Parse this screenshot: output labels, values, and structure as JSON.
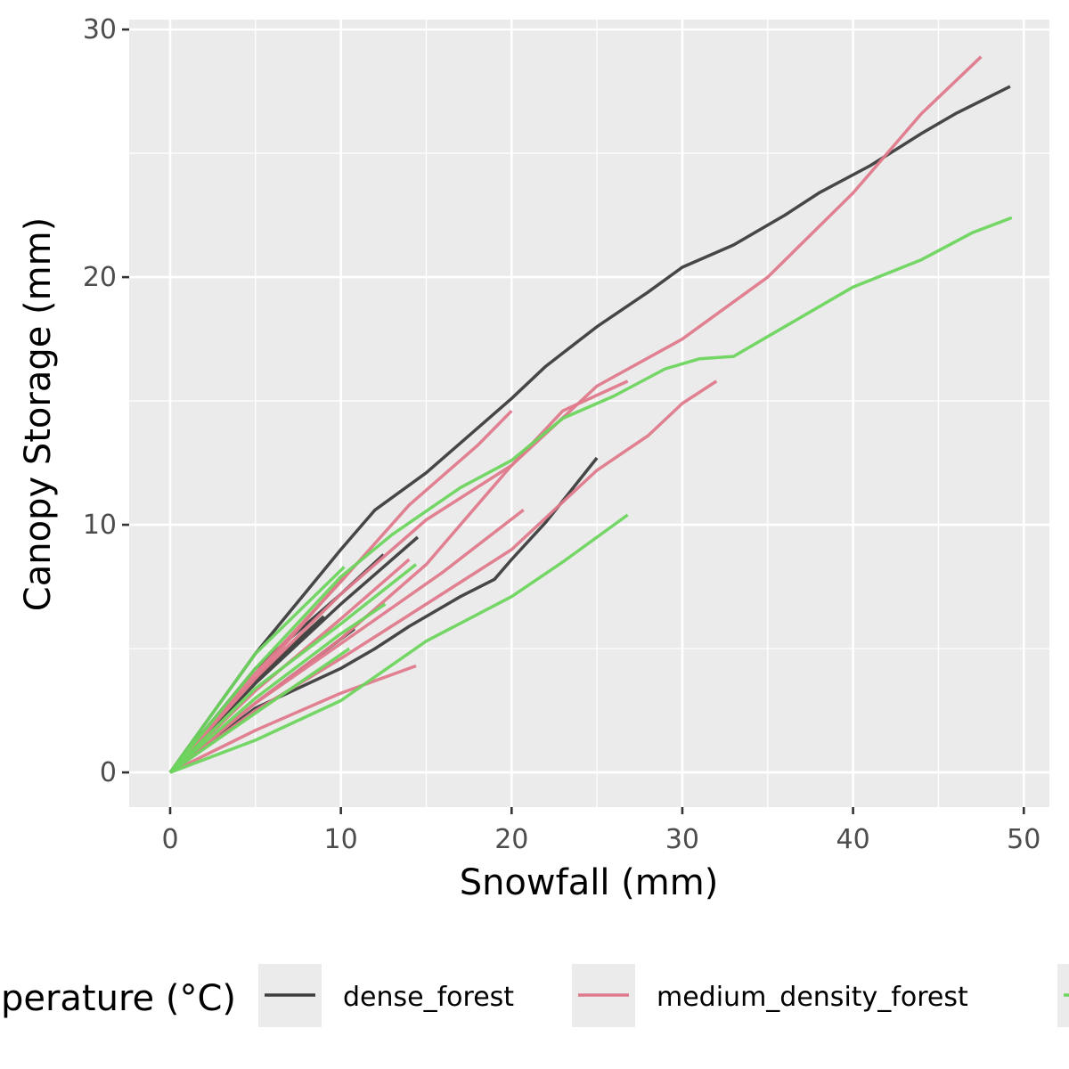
{
  "chart_data": {
    "type": "line",
    "title": "",
    "xlabel": "Snowfall (mm)",
    "ylabel": "Canopy Storage (mm)",
    "xlim": [
      -2.4,
      51.5
    ],
    "ylim": [
      -1.4,
      30.4
    ],
    "x_ticks": [
      0,
      10,
      20,
      30,
      40,
      50
    ],
    "y_ticks": [
      0,
      10,
      20,
      30
    ],
    "x_tick_labels": [
      "0",
      "10",
      "20",
      "30",
      "40",
      "50"
    ],
    "y_tick_labels": [
      "0",
      "10",
      "20",
      "30"
    ],
    "grid": true,
    "background": "#ebebeb",
    "legend": {
      "position": "bottom",
      "title": "Temperature (°C)",
      "entries": [
        {
          "label": "dense_forest",
          "color": "#3d3d3d"
        },
        {
          "label": "medium_density_forest",
          "color": "#df7a8c"
        },
        {
          "label": "",
          "color": "#6dd55e"
        }
      ]
    },
    "series": [
      {
        "name": "dense_forest",
        "color": "#3d3d3d",
        "x": [
          0,
          5,
          10,
          12,
          15,
          20,
          22,
          25,
          28,
          30,
          33,
          36,
          38,
          41,
          44,
          46,
          49.2
        ],
        "y": [
          0,
          4.8,
          9.0,
          10.6,
          12.1,
          15.1,
          16.4,
          18.0,
          19.4,
          20.4,
          21.3,
          22.5,
          23.4,
          24.5,
          25.8,
          26.6,
          27.7
        ]
      },
      {
        "name": "dense_forest",
        "color": "#3d3d3d",
        "x": [
          0,
          5,
          10,
          12,
          14,
          17,
          19,
          20,
          22,
          25
        ],
        "y": [
          0,
          2.6,
          4.2,
          5.0,
          5.9,
          7.1,
          7.8,
          8.6,
          10.1,
          12.7
        ]
      },
      {
        "name": "dense_forest",
        "color": "#3d3d3d",
        "x": [
          0,
          5,
          10,
          12.5
        ],
        "y": [
          0,
          4.2,
          7.2,
          8.8
        ]
      },
      {
        "name": "dense_forest",
        "color": "#3d3d3d",
        "x": [
          0,
          5,
          10,
          14.5
        ],
        "y": [
          0,
          3.6,
          6.8,
          9.5
        ]
      },
      {
        "name": "dense_forest",
        "color": "#3d3d3d",
        "x": [
          0,
          5,
          10.8
        ],
        "y": [
          0,
          2.8,
          5.8
        ]
      },
      {
        "name": "dense_forest",
        "color": "#3d3d3d",
        "x": [
          0,
          4,
          9
        ],
        "y": [
          0,
          3.1,
          6.3
        ]
      },
      {
        "name": "medium_density_forest",
        "color": "#df7a8c",
        "x": [
          0,
          5,
          10,
          15,
          20,
          25,
          30,
          35,
          40,
          44,
          47.5
        ],
        "y": [
          0,
          3.8,
          7.2,
          10.2,
          12.4,
          15.6,
          17.5,
          20.0,
          23.4,
          26.6,
          28.9
        ]
      },
      {
        "name": "medium_density_forest",
        "color": "#df7a8c",
        "x": [
          0,
          5,
          10,
          14,
          18,
          20
        ],
        "y": [
          0,
          4.0,
          7.7,
          10.8,
          13.2,
          14.6
        ]
      },
      {
        "name": "medium_density_forest",
        "color": "#df7a8c",
        "x": [
          0,
          5,
          10,
          15,
          20,
          23,
          26.8
        ],
        "y": [
          0,
          2.8,
          5.4,
          8.4,
          12.4,
          14.6,
          15.8
        ]
      },
      {
        "name": "medium_density_forest",
        "color": "#df7a8c",
        "x": [
          0,
          5,
          10,
          15,
          20,
          25,
          28,
          30,
          32
        ],
        "y": [
          0,
          2.5,
          4.6,
          6.8,
          9.0,
          12.2,
          13.6,
          14.9,
          15.8
        ]
      },
      {
        "name": "medium_density_forest",
        "color": "#df7a8c",
        "x": [
          0,
          5,
          10,
          16,
          20.7
        ],
        "y": [
          0,
          2.8,
          5.2,
          8.1,
          10.6
        ]
      },
      {
        "name": "medium_density_forest",
        "color": "#df7a8c",
        "x": [
          0,
          5,
          10,
          14.4
        ],
        "y": [
          0,
          1.7,
          3.2,
          4.3
        ]
      },
      {
        "name": "medium_density_forest",
        "color": "#df7a8c",
        "x": [
          0,
          5,
          10,
          14
        ],
        "y": [
          0,
          3.3,
          6.2,
          8.6
        ]
      },
      {
        "name": "medium_density_forest",
        "color": "#df7a8c",
        "x": [
          0,
          5,
          10.3
        ],
        "y": [
          0,
          3.8,
          8.0
        ]
      },
      {
        "name": "",
        "color": "#6dd55e",
        "x": [
          0,
          5,
          10,
          13,
          17,
          20,
          23,
          26,
          29,
          31,
          33,
          36,
          40,
          44,
          47,
          49.3
        ],
        "y": [
          0,
          4.2,
          7.9,
          9.6,
          11.5,
          12.6,
          14.3,
          15.2,
          16.3,
          16.7,
          16.8,
          18.0,
          19.6,
          20.7,
          21.8,
          22.4
        ]
      },
      {
        "name": "",
        "color": "#6dd55e",
        "x": [
          0,
          5,
          10,
          15,
          20,
          23,
          26.8
        ],
        "y": [
          0,
          1.3,
          2.9,
          5.3,
          7.1,
          8.5,
          10.4
        ]
      },
      {
        "name": "",
        "color": "#6dd55e",
        "x": [
          0,
          5,
          10,
          14.4
        ],
        "y": [
          0,
          3.4,
          6.0,
          8.4
        ]
      },
      {
        "name": "",
        "color": "#6dd55e",
        "x": [
          0,
          5,
          10.2
        ],
        "y": [
          0,
          4.8,
          8.3
        ]
      },
      {
        "name": "",
        "color": "#6dd55e",
        "x": [
          0,
          5,
          10,
          12.6
        ],
        "y": [
          0,
          3.0,
          5.6,
          6.8
        ]
      },
      {
        "name": "",
        "color": "#6dd55e",
        "x": [
          0,
          5,
          10.5
        ],
        "y": [
          0,
          2.4,
          5.0
        ]
      }
    ]
  }
}
